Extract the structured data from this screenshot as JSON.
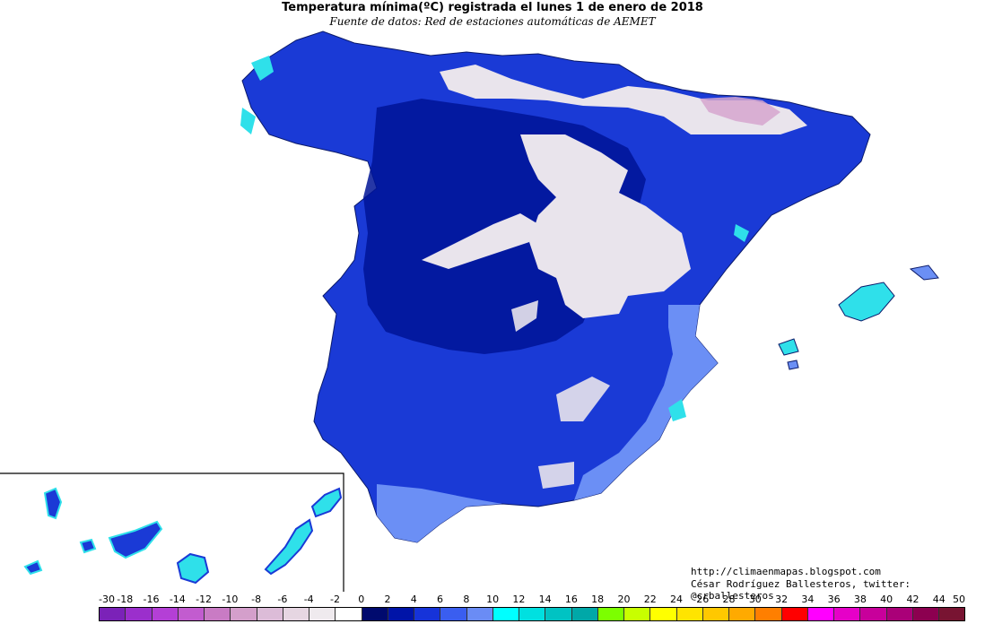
{
  "title": "Temperatura mínima(ºC) registrada el lunes 1 de enero de 2018",
  "subtitle": "Fuente de datos: Red de estaciones automáticas de AEMET",
  "credits": {
    "blog": "http://climaenmapas.blogspot.com",
    "author": "César Rodríguez Ballesteros, twitter: @crballesteros"
  },
  "legend": {
    "labels": [
      "-30",
      "-18",
      "-16",
      "-14",
      "-12",
      "-10",
      "-8",
      "-6",
      "-4",
      "-2",
      "0",
      "2",
      "4",
      "6",
      "8",
      "10",
      "12",
      "14",
      "16",
      "18",
      "20",
      "22",
      "24",
      "26",
      "28",
      "30",
      "32",
      "34",
      "36",
      "38",
      "40",
      "42",
      "44",
      "50"
    ],
    "colors": [
      "#7b22b8",
      "#9b2fcc",
      "#b43fd6",
      "#c25ccf",
      "#c97bc4",
      "#d49fcb",
      "#dcbcd8",
      "#e6d6e2",
      "#efeaee",
      "#ffffff",
      "#000a6e",
      "#0014a8",
      "#1633d9",
      "#3a5ef0",
      "#6a8cf5",
      "#00ffff",
      "#00e0e0",
      "#00c3c3",
      "#00a8a8",
      "#7cff00",
      "#c8ff00",
      "#ffff00",
      "#ffe400",
      "#ffc800",
      "#ffaa00",
      "#ff7f00",
      "#ff0000",
      "#ff00ff",
      "#e600c8",
      "#c8009b",
      "#aa0078",
      "#8c0050",
      "#781432"
    ]
  },
  "map_colors": {
    "land_main": "#1a3ad6",
    "land_dark": "#001496",
    "frost": "#e9e4ec",
    "coast_light": "#6b8ff5",
    "coast_cyan": "#2fe0ea",
    "mountain_pink": "#d6a6cf"
  }
}
